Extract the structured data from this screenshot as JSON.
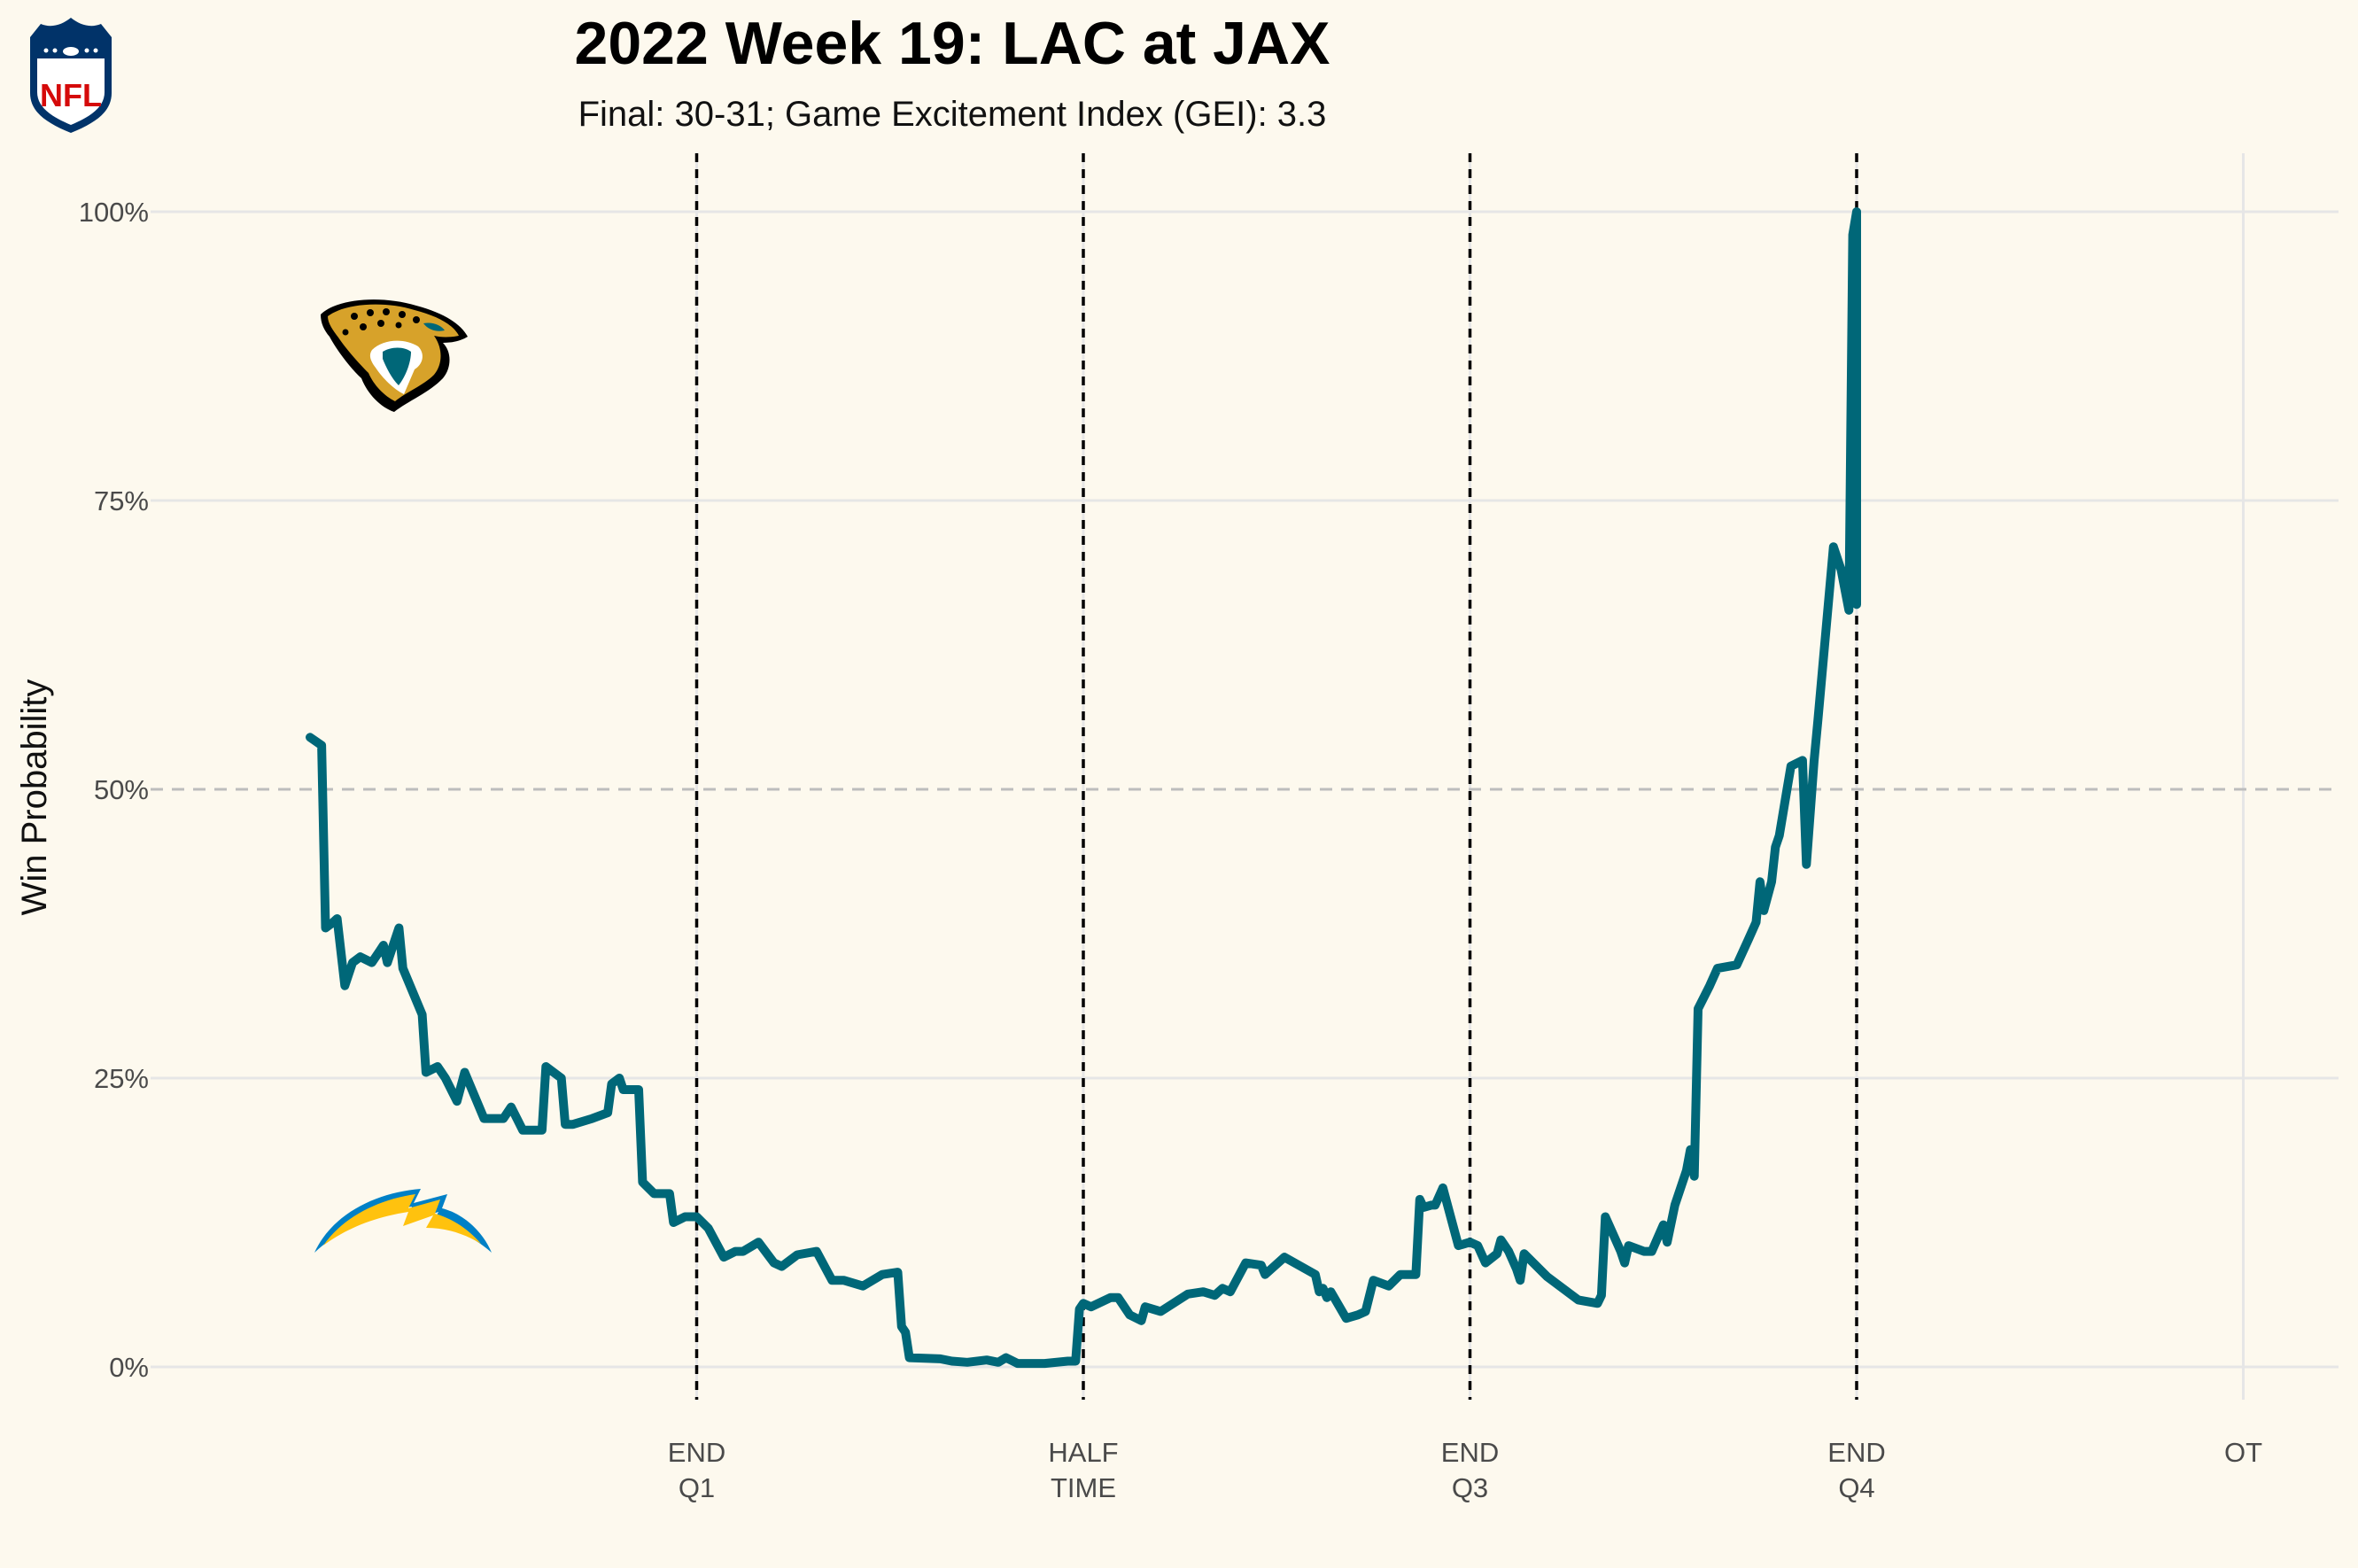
{
  "title": "2022 Week 19: LAC at JAX",
  "subtitle": "Final: 30-31; Game Excitement Index (GEI): 3.3",
  "logos": {
    "league": "nfl-shield-logo",
    "home": "jaguars-logo",
    "away": "chargers-bolt-logo"
  },
  "colors": {
    "background": "#fdf9ee",
    "line": "#006778",
    "grid": "#e6e6e6",
    "midline": "#bdbdbd",
    "quarter_lines": "#000000",
    "nfl_blue": "#013369",
    "nfl_red": "#d50a0a",
    "jaguars_gold": "#d7a22a",
    "chargers_gold": "#ffc20e",
    "chargers_blue": "#0080c6"
  },
  "chart_data": {
    "type": "line",
    "ylabel": "Win Probability",
    "xlabel": "",
    "ylim": [
      0,
      1
    ],
    "xlim": [
      -0.4,
      5.25
    ],
    "yticks": [
      {
        "value": 0,
        "label": "0%"
      },
      {
        "value": 0.25,
        "label": "25%"
      },
      {
        "value": 0.5,
        "label": "50%"
      },
      {
        "value": 0.75,
        "label": "75%"
      },
      {
        "value": 1,
        "label": "100%"
      }
    ],
    "xticks": [
      {
        "value": 1,
        "lines": [
          "END",
          "Q1"
        ]
      },
      {
        "value": 2,
        "lines": [
          "HALF",
          "TIME"
        ]
      },
      {
        "value": 3,
        "lines": [
          "END",
          "Q3"
        ]
      },
      {
        "value": 4,
        "lines": [
          "END",
          "Q4"
        ]
      },
      {
        "value": 5,
        "lines": [
          "OT"
        ]
      }
    ],
    "quarter_end_lines": [
      1,
      2,
      3,
      4
    ],
    "reference_line": 0.5,
    "grid": true,
    "series": [
      {
        "team": "JAX",
        "points": [
          [
            0.0,
            0.545
          ],
          [
            0.03,
            0.538
          ],
          [
            0.04,
            0.38
          ],
          [
            0.06,
            0.385
          ],
          [
            0.07,
            0.388
          ],
          [
            0.09,
            0.33
          ],
          [
            0.11,
            0.35
          ],
          [
            0.13,
            0.355
          ],
          [
            0.16,
            0.35
          ],
          [
            0.18,
            0.36
          ],
          [
            0.19,
            0.365
          ],
          [
            0.2,
            0.35
          ],
          [
            0.23,
            0.38
          ],
          [
            0.24,
            0.345
          ],
          [
            0.29,
            0.305
          ],
          [
            0.3,
            0.255
          ],
          [
            0.33,
            0.26
          ],
          [
            0.35,
            0.25
          ],
          [
            0.38,
            0.23
          ],
          [
            0.4,
            0.255
          ],
          [
            0.45,
            0.215
          ],
          [
            0.5,
            0.215
          ],
          [
            0.52,
            0.225
          ],
          [
            0.55,
            0.205
          ],
          [
            0.6,
            0.205
          ],
          [
            0.61,
            0.26
          ],
          [
            0.65,
            0.25
          ],
          [
            0.66,
            0.21
          ],
          [
            0.68,
            0.21
          ],
          [
            0.73,
            0.215
          ],
          [
            0.77,
            0.22
          ],
          [
            0.78,
            0.245
          ],
          [
            0.8,
            0.25
          ],
          [
            0.81,
            0.24
          ],
          [
            0.85,
            0.24
          ],
          [
            0.86,
            0.16
          ],
          [
            0.89,
            0.15
          ],
          [
            0.93,
            0.15
          ],
          [
            0.94,
            0.125
          ],
          [
            0.97,
            0.13
          ],
          [
            1.0,
            0.13
          ],
          [
            1.03,
            0.12
          ],
          [
            1.07,
            0.095
          ],
          [
            1.1,
            0.1
          ],
          [
            1.12,
            0.1
          ],
          [
            1.16,
            0.108
          ],
          [
            1.2,
            0.09
          ],
          [
            1.22,
            0.087
          ],
          [
            1.26,
            0.097
          ],
          [
            1.31,
            0.1
          ],
          [
            1.35,
            0.075
          ],
          [
            1.38,
            0.075
          ],
          [
            1.43,
            0.07
          ],
          [
            1.48,
            0.08
          ],
          [
            1.52,
            0.082
          ],
          [
            1.53,
            0.035
          ],
          [
            1.54,
            0.03
          ],
          [
            1.55,
            0.008
          ],
          [
            1.63,
            0.007
          ],
          [
            1.66,
            0.005
          ],
          [
            1.7,
            0.004
          ],
          [
            1.75,
            0.006
          ],
          [
            1.78,
            0.004
          ],
          [
            1.8,
            0.008
          ],
          [
            1.83,
            0.003
          ],
          [
            1.9,
            0.003
          ],
          [
            1.96,
            0.005
          ],
          [
            1.98,
            0.005
          ],
          [
            1.99,
            0.05
          ],
          [
            2.0,
            0.055
          ],
          [
            2.02,
            0.052
          ],
          [
            2.07,
            0.06
          ],
          [
            2.09,
            0.06
          ],
          [
            2.12,
            0.045
          ],
          [
            2.15,
            0.04
          ],
          [
            2.16,
            0.052
          ],
          [
            2.2,
            0.048
          ],
          [
            2.27,
            0.063
          ],
          [
            2.31,
            0.065
          ],
          [
            2.34,
            0.062
          ],
          [
            2.36,
            0.068
          ],
          [
            2.38,
            0.065
          ],
          [
            2.42,
            0.09
          ],
          [
            2.46,
            0.088
          ],
          [
            2.47,
            0.08
          ],
          [
            2.52,
            0.095
          ],
          [
            2.6,
            0.08
          ],
          [
            2.61,
            0.065
          ],
          [
            2.62,
            0.068
          ],
          [
            2.63,
            0.06
          ],
          [
            2.64,
            0.065
          ],
          [
            2.68,
            0.042
          ],
          [
            2.71,
            0.045
          ],
          [
            2.73,
            0.048
          ],
          [
            2.75,
            0.075
          ],
          [
            2.79,
            0.07
          ],
          [
            2.82,
            0.08
          ],
          [
            2.86,
            0.08
          ],
          [
            2.87,
            0.145
          ],
          [
            2.88,
            0.138
          ],
          [
            2.9,
            0.14
          ],
          [
            2.91,
            0.14
          ],
          [
            2.93,
            0.155
          ],
          [
            2.97,
            0.105
          ],
          [
            3.0,
            0.108
          ],
          [
            3.02,
            0.105
          ],
          [
            3.04,
            0.09
          ],
          [
            3.07,
            0.098
          ],
          [
            3.08,
            0.11
          ],
          [
            3.1,
            0.1
          ],
          [
            3.12,
            0.085
          ],
          [
            3.13,
            0.075
          ],
          [
            3.14,
            0.098
          ],
          [
            3.2,
            0.078
          ],
          [
            3.28,
            0.058
          ],
          [
            3.33,
            0.055
          ],
          [
            3.34,
            0.062
          ],
          [
            3.35,
            0.13
          ],
          [
            3.37,
            0.115
          ],
          [
            3.39,
            0.1
          ],
          [
            3.4,
            0.09
          ],
          [
            3.41,
            0.105
          ],
          [
            3.45,
            0.1
          ],
          [
            3.47,
            0.1
          ],
          [
            3.5,
            0.123
          ],
          [
            3.51,
            0.108
          ],
          [
            3.53,
            0.14
          ],
          [
            3.56,
            0.17
          ],
          [
            3.57,
            0.188
          ],
          [
            3.58,
            0.165
          ],
          [
            3.59,
            0.31
          ],
          [
            3.62,
            0.33
          ],
          [
            3.64,
            0.345
          ],
          [
            3.69,
            0.348
          ],
          [
            3.72,
            0.37
          ],
          [
            3.74,
            0.385
          ],
          [
            3.75,
            0.42
          ],
          [
            3.76,
            0.395
          ],
          [
            3.78,
            0.42
          ],
          [
            3.79,
            0.45
          ],
          [
            3.8,
            0.46
          ],
          [
            3.82,
            0.5
          ],
          [
            3.83,
            0.52
          ],
          [
            3.86,
            0.525
          ],
          [
            3.87,
            0.435
          ],
          [
            3.89,
            0.525
          ],
          [
            3.9,
            0.56
          ],
          [
            3.94,
            0.71
          ],
          [
            3.96,
            0.69
          ],
          [
            3.98,
            0.655
          ],
          [
            3.99,
            0.98
          ],
          [
            4.0,
            1.0
          ],
          [
            4.0,
            0.66
          ]
        ]
      }
    ]
  }
}
